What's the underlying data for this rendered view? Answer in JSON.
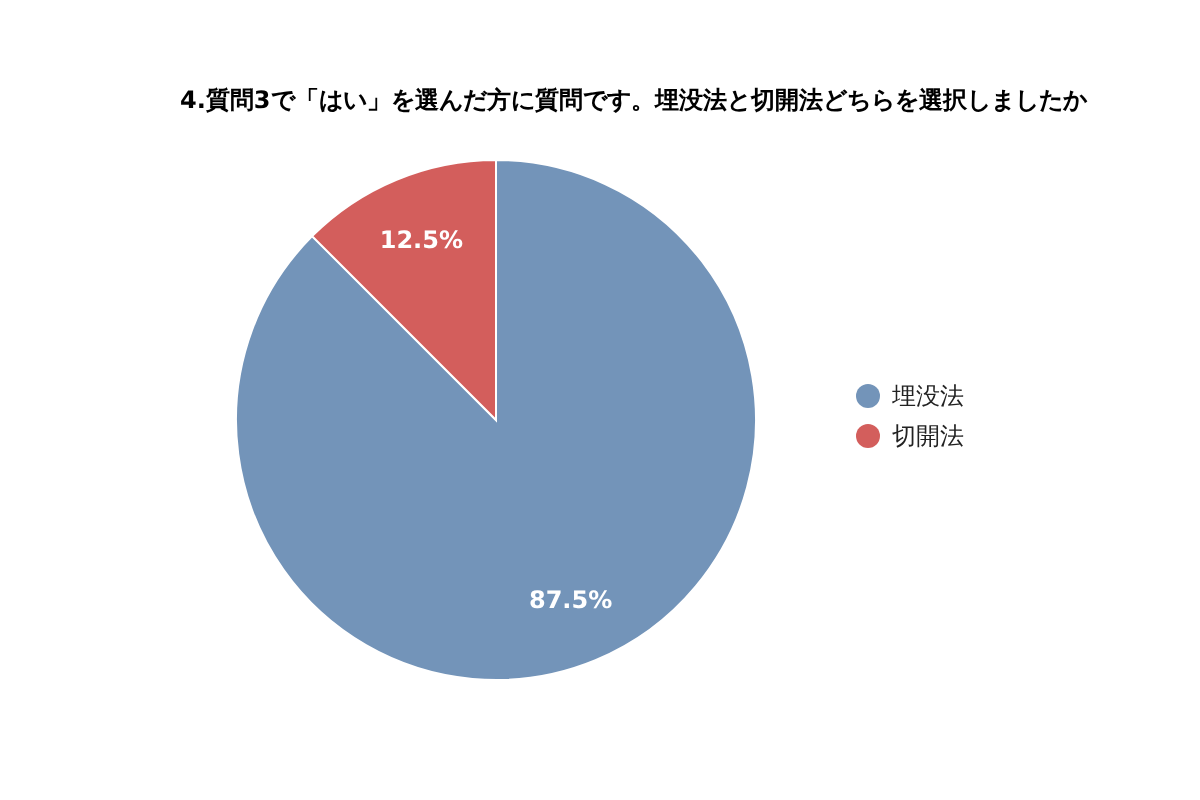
{
  "chart_data": {
    "type": "pie",
    "title": "4.質問3で「はい」を選んだ方に質問です。埋没法と切開法どちらを選択しましたか",
    "categories": [
      "埋没法",
      "切開法"
    ],
    "values": [
      87.5,
      12.5
    ],
    "colors": [
      "#7394b9",
      "#d35e5c"
    ],
    "value_labels": [
      "87.5%",
      "12.5%"
    ],
    "legend": "right"
  }
}
